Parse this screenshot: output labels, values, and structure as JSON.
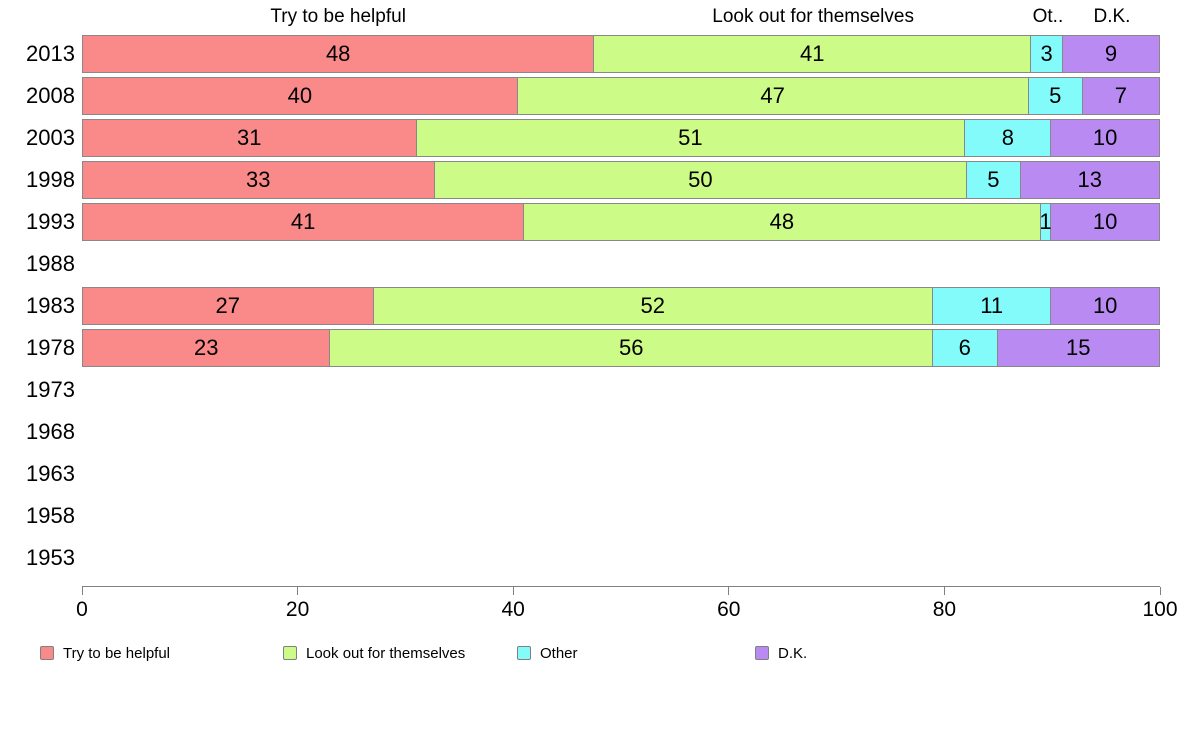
{
  "chart_data": {
    "type": "bar",
    "stacked": true,
    "orientation": "horizontal",
    "title": "",
    "column_headers": [
      "Try to be helpful",
      "Look out for themselves",
      "Ot..",
      "D.K."
    ],
    "series": [
      {
        "name": "Try to be helpful",
        "color": "#FA8A8A"
      },
      {
        "name": "Look out for themselves",
        "color": "#CCFB87"
      },
      {
        "name": "Other",
        "color": "#84FBFB"
      },
      {
        "name": "D.K.",
        "color": "#B98BF2"
      }
    ],
    "categories": [
      "2013",
      "2008",
      "2003",
      "1998",
      "1993",
      "1988",
      "1983",
      "1978",
      "1973",
      "1968",
      "1963",
      "1958",
      "1953"
    ],
    "rows": [
      {
        "year": "2013",
        "values": [
          48,
          41,
          3,
          9
        ]
      },
      {
        "year": "2008",
        "values": [
          40,
          47,
          5,
          7
        ]
      },
      {
        "year": "2003",
        "values": [
          31,
          51,
          8,
          10
        ]
      },
      {
        "year": "1998",
        "values": [
          33,
          50,
          5,
          13
        ]
      },
      {
        "year": "1993",
        "values": [
          41,
          48,
          1,
          10
        ]
      },
      {
        "year": "1988",
        "values": null
      },
      {
        "year": "1983",
        "values": [
          27,
          52,
          11,
          10
        ]
      },
      {
        "year": "1978",
        "values": [
          23,
          56,
          6,
          15
        ]
      },
      {
        "year": "1973",
        "values": null
      },
      {
        "year": "1968",
        "values": null
      },
      {
        "year": "1963",
        "values": null
      },
      {
        "year": "1958",
        "values": null
      },
      {
        "year": "1953",
        "values": null
      }
    ],
    "x_axis": {
      "range": [
        0,
        100
      ],
      "ticks": [
        0,
        20,
        40,
        60,
        80,
        100
      ]
    },
    "legend": {
      "position": "bottom",
      "labels": [
        "Try to be helpful",
        "Look out for themselves",
        "Other",
        "D.K."
      ]
    },
    "style_colors": {
      "bar_border": "#888888",
      "axis": "#808080",
      "text": "#000000",
      "background": "#ffffff"
    }
  }
}
